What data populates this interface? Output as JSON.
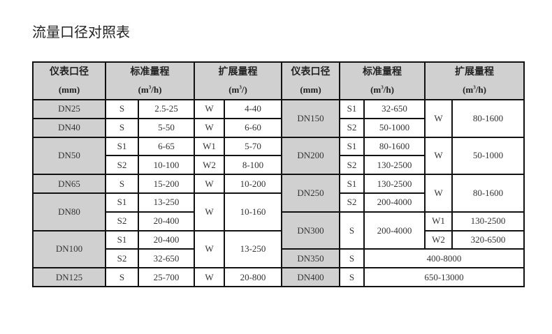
{
  "title": "流量口径对照表",
  "header": {
    "left": {
      "dn": "仪表口径",
      "dn_unit": "(mm)",
      "std": "标准量程",
      "std_unit_a": "(m",
      "std_unit_b": "/h)",
      "ext": "扩展量程",
      "ext_unit_a": "(m",
      "ext_unit_b": "/)"
    },
    "right": {
      "dn": "仪表口径",
      "dn_unit": "(mm)",
      "std": "标准量程",
      "std_unit_a": "(m",
      "std_unit_b": "/h)",
      "ext": "扩展量程",
      "ext_unit_a": "(m",
      "ext_unit_b": "/h)"
    },
    "sup": "3"
  },
  "left": [
    {
      "dn": "DN25",
      "std": [
        {
          "code": "S",
          "range": "2.5-25"
        }
      ],
      "ext": [
        {
          "code": "W",
          "range": "4-40"
        }
      ]
    },
    {
      "dn": "DN40",
      "std": [
        {
          "code": "S",
          "range": "5-50"
        }
      ],
      "ext": [
        {
          "code": "W",
          "range": "6-60"
        }
      ]
    },
    {
      "dn": "DN50",
      "std": [
        {
          "code": "S1",
          "range": "6-65"
        },
        {
          "code": "S2",
          "range": "10-100"
        }
      ],
      "ext": [
        {
          "code": "W1",
          "range": "5-70"
        },
        {
          "code": "W2",
          "range": "8-100"
        }
      ]
    },
    {
      "dn": "DN65",
      "std": [
        {
          "code": "S",
          "range": "15-200"
        }
      ],
      "ext": [
        {
          "code": "W",
          "range": "10-200"
        }
      ]
    },
    {
      "dn": "DN80",
      "std": [
        {
          "code": "S1",
          "range": "13-250"
        },
        {
          "code": "S2",
          "range": "20-400"
        }
      ],
      "ext": [
        {
          "code": "W",
          "range": "10-160"
        }
      ]
    },
    {
      "dn": "DN100",
      "std": [
        {
          "code": "S1",
          "range": "20-400"
        },
        {
          "code": "S2",
          "range": "32-650"
        }
      ],
      "ext": [
        {
          "code": "W",
          "range": "13-250"
        }
      ]
    },
    {
      "dn": "DN125",
      "std": [
        {
          "code": "S",
          "range": "25-700"
        }
      ],
      "ext": [
        {
          "code": "W",
          "range": "20-800"
        }
      ]
    }
  ],
  "right": [
    {
      "dn": "DN150",
      "std": [
        {
          "code": "S1",
          "range": "32-650"
        },
        {
          "code": "S2",
          "range": "50-1000"
        }
      ],
      "ext": [
        {
          "code": "W",
          "range": "80-1600"
        }
      ]
    },
    {
      "dn": "DN200",
      "std": [
        {
          "code": "S1",
          "range": "80-1600"
        },
        {
          "code": "S2",
          "range": "130-2500"
        }
      ],
      "ext": [
        {
          "code": "W",
          "range": "50-1000"
        }
      ]
    },
    {
      "dn": "DN250",
      "std": [
        {
          "code": "S1",
          "range": "130-2500"
        },
        {
          "code": "S2",
          "range": "200-4000"
        }
      ],
      "ext": [
        {
          "code": "W",
          "range": "80-1600"
        }
      ]
    },
    {
      "dn": "DN300",
      "std": [
        {
          "code": "S",
          "range": "200-4000"
        }
      ],
      "ext": [
        {
          "code": "W1",
          "range": "130-2500"
        },
        {
          "code": "W2",
          "range": "320-6500"
        }
      ]
    },
    {
      "dn": "DN350",
      "std": [
        {
          "code": "S",
          "range": "400-8000"
        }
      ]
    },
    {
      "dn": "DN400",
      "std": [
        {
          "code": "S",
          "range": "650-13000"
        }
      ]
    }
  ]
}
